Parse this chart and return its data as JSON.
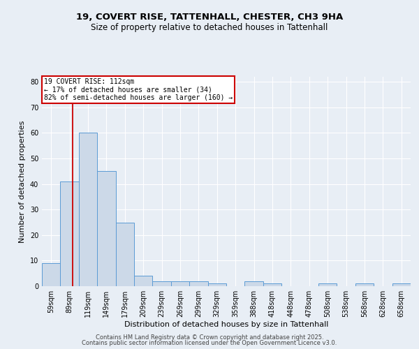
{
  "title_line1": "19, COVERT RISE, TATTENHALL, CHESTER, CH3 9HA",
  "title_line2": "Size of property relative to detached houses in Tattenhall",
  "xlabel": "Distribution of detached houses by size in Tattenhall",
  "ylabel": "Number of detached properties",
  "categories": [
    "59sqm",
    "89sqm",
    "119sqm",
    "149sqm",
    "179sqm",
    "209sqm",
    "239sqm",
    "269sqm",
    "299sqm",
    "329sqm",
    "359sqm",
    "388sqm",
    "418sqm",
    "448sqm",
    "478sqm",
    "508sqm",
    "538sqm",
    "568sqm",
    "628sqm",
    "658sqm"
  ],
  "values": [
    9,
    41,
    60,
    45,
    25,
    4,
    2,
    2,
    2,
    1,
    0,
    2,
    1,
    0,
    0,
    1,
    0,
    1,
    0,
    1
  ],
  "bar_color": "#ccd9e8",
  "bar_edge_color": "#5b9bd5",
  "red_line_x": 1.17,
  "annotation_title": "19 COVERT RISE: 112sqm",
  "annotation_line2": "← 17% of detached houses are smaller (34)",
  "annotation_line3": "82% of semi-detached houses are larger (160) →",
  "annotation_box_color": "#ffffff",
  "annotation_box_edge": "#cc0000",
  "ylim": [
    0,
    82
  ],
  "yticks": [
    0,
    10,
    20,
    30,
    40,
    50,
    60,
    70,
    80
  ],
  "background_color": "#e8eef5",
  "grid_color": "#ffffff",
  "footer_line1": "Contains HM Land Registry data © Crown copyright and database right 2025.",
  "footer_line2": "Contains public sector information licensed under the Open Government Licence v3.0.",
  "title_fontsize": 9.5,
  "subtitle_fontsize": 8.5,
  "axis_label_fontsize": 8,
  "tick_fontsize": 7,
  "annotation_fontsize": 7,
  "footer_fontsize": 6
}
